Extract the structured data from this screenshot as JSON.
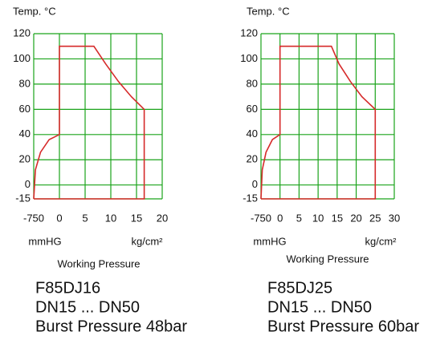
{
  "chart_data": [
    {
      "type": "line",
      "y_label": "Temp. °C",
      "x_unit_left": "mmHG",
      "x_unit_right": "kg/cm²",
      "x_label": "Working Pressure",
      "notes": [
        "F85DJ16",
        "DN15 ... DN50",
        "Burst Pressure 48bar"
      ],
      "xlim": [
        -750,
        20
      ],
      "xticks": [
        -750,
        0,
        5,
        10,
        15,
        20
      ],
      "ylim": [
        -15,
        120
      ],
      "yticks": [
        -15,
        0,
        20,
        40,
        60,
        80,
        100,
        120
      ],
      "grid": true,
      "grid_color": "#1aa31a",
      "color": "#d62a2a",
      "x": [
        -750,
        16.5,
        16.5,
        14,
        11.5,
        9,
        6.7,
        0,
        0,
        -300,
        -550,
        -700,
        -750
      ],
      "y": [
        -15,
        -15,
        60,
        70,
        82,
        96,
        110,
        110,
        40,
        36,
        26,
        12,
        -15
      ]
    },
    {
      "type": "line",
      "y_label": "Temp. °C",
      "x_unit_left": "mmHG",
      "x_unit_right": "kg/cm²",
      "x_label": "Working Pressure",
      "notes": [
        "F85DJ25",
        "DN15 ... DN50",
        "Burst Pressure 60bar"
      ],
      "xlim": [
        -750,
        30
      ],
      "xticks": [
        -750,
        0,
        5,
        10,
        15,
        20,
        25,
        30
      ],
      "ylim": [
        -15,
        120
      ],
      "yticks": [
        -15,
        0,
        20,
        40,
        60,
        80,
        100,
        120
      ],
      "grid": true,
      "grid_color": "#1aa31a",
      "color": "#d62a2a",
      "x": [
        -750,
        25,
        25,
        21.5,
        18.5,
        15.5,
        13.5,
        0,
        0,
        -300,
        -550,
        -700,
        -750
      ],
      "y": [
        -15,
        -15,
        60,
        70,
        82,
        96,
        110,
        110,
        40,
        36,
        26,
        12,
        -15
      ]
    }
  ]
}
